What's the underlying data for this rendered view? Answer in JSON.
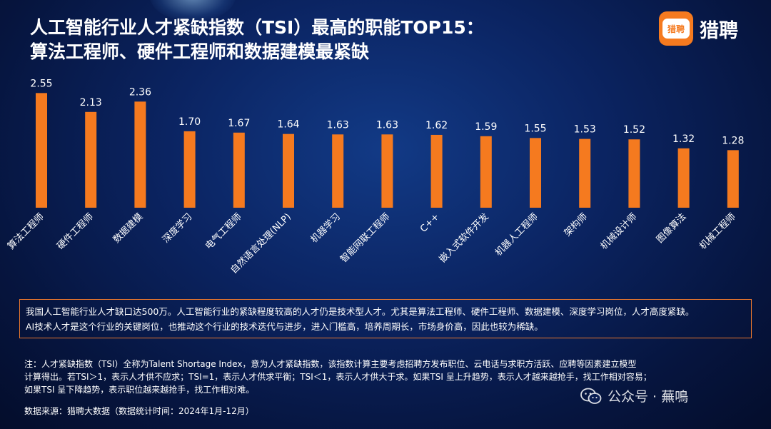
{
  "title": {
    "line1": "人工智能行业人才紧缺指数（TSI）最高的职能TOP15：",
    "line2": "算法工程师、硬件工程师和数据建模最紧缺"
  },
  "logo": {
    "badge": "猎聘",
    "name": "猎聘",
    "brand_color": "#f57a1f"
  },
  "chart_data": {
    "type": "bar",
    "title": "人工智能行业人才紧缺指数（TSI）最高的职能TOP15",
    "categories": [
      "算法工程师",
      "硬件工程师",
      "数据建模",
      "深度学习",
      "电气工程师",
      "自然语言处理(NLP)",
      "机器学习",
      "智能网联工程师",
      "C++",
      "嵌入式软件开发",
      "机器人工程师",
      "架构师",
      "机械设计师",
      "图像算法",
      "机械工程师"
    ],
    "values": [
      2.55,
      2.13,
      2.36,
      1.7,
      1.67,
      1.64,
      1.63,
      1.63,
      1.62,
      1.59,
      1.55,
      1.53,
      1.52,
      1.32,
      1.28
    ],
    "value_labels": [
      "2.55",
      "2.13",
      "2.36",
      "1.70",
      "1.67",
      "1.64",
      "1.63",
      "1.63",
      "1.62",
      "1.59",
      "1.55",
      "1.53",
      "1.52",
      "1.32",
      "1.28"
    ],
    "xlabel": "",
    "ylabel": "",
    "ylim": [
      0,
      2.8
    ],
    "bar_color": "#f57a1f",
    "grid": false
  },
  "note": {
    "line1": "我国人工智能行业人才缺口达500万。人工智能行业的紧缺程度较高的人才仍是技术型人才。尤其是算法工程师、硬件工程师、数据建模、深度学习岗位，人才高度紧缺。",
    "line2": "AI技术人才是这个行业的关键岗位，也推动这个行业的技术迭代与进步，进入门槛高，培养周期长，市场身价高，因此也较为稀缺。",
    "border_color": "#e9772e"
  },
  "footnote": {
    "line1": "注：人才紧缺指数（TSI）全称为Talent Shortage Index，意为人才紧缺指数，该指数计算主要考虑招聘方发布职位、云电话与求职方活跃、应聘等因素建立模型",
    "line2": "计算得出。若TSI＞1，表示人才供不应求；TSI=1，表示人才供求平衡；TSI＜1，表示人才供大于求。如果TSI 呈上升趋势，表示人才越来越抢手，找工作相对容易；",
    "line3": "如果TSI 呈下降趋势，表示职位越来越抢手，找工作相对难。"
  },
  "source": "数据来源：猎聘大数据（数据统计时间：2024年1月-12月）",
  "watermark": "公众号 · 蕪鳴"
}
